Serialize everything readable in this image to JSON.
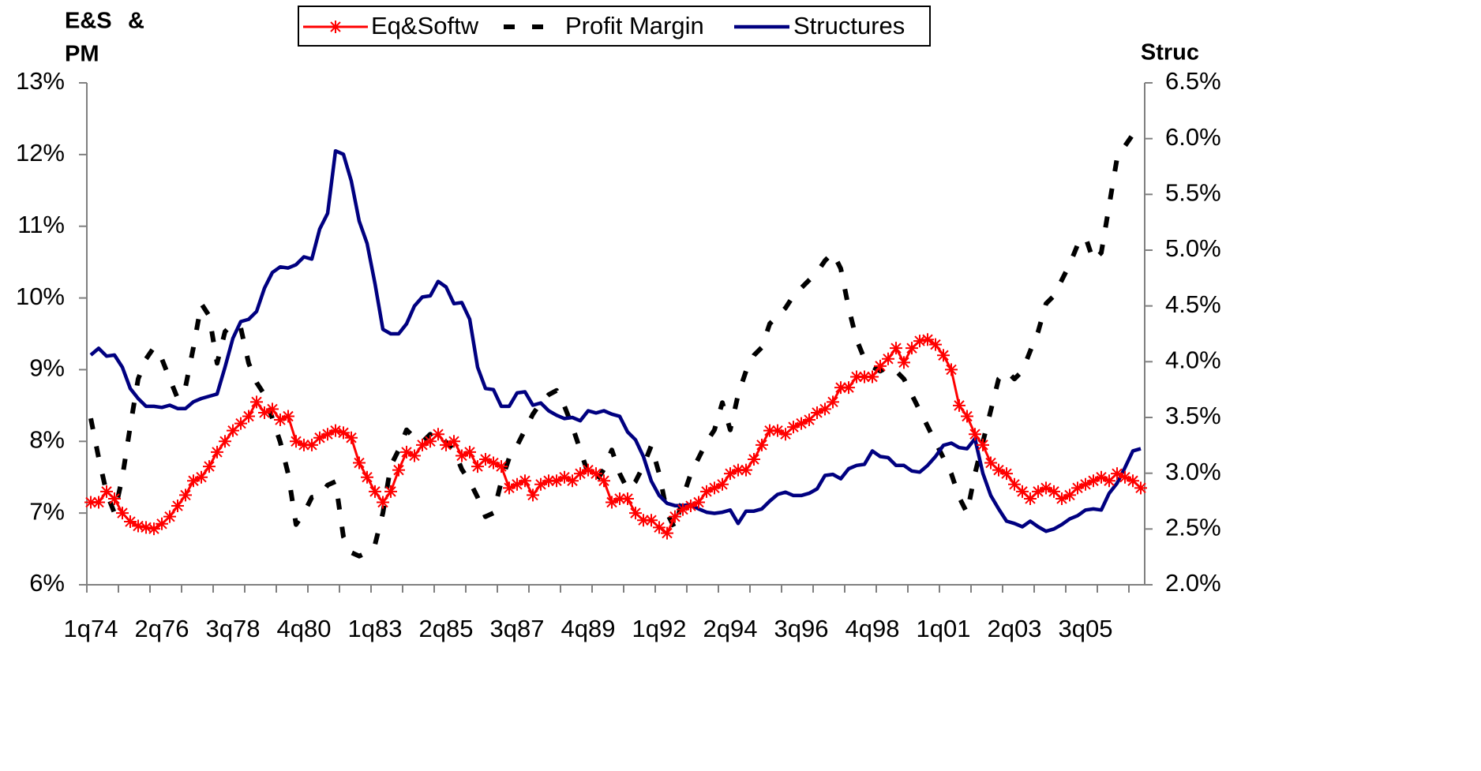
{
  "chart_data": {
    "type": "line",
    "ylabel": [
      {
        "text": "E&S",
        "color": "#ff0000"
      },
      {
        "text": "&",
        "color": "#000080"
      },
      {
        "text": "PM",
        "color": "#000000"
      }
    ],
    "y2label": {
      "text": "Struc",
      "color": "#000080"
    },
    "categories": [
      "1q74",
      null,
      null,
      null,
      null,
      null,
      null,
      null,
      null,
      "2q76",
      null,
      null,
      null,
      null,
      null,
      null,
      null,
      null,
      "3q78",
      null,
      null,
      null,
      null,
      null,
      null,
      null,
      null,
      "4q80",
      null,
      null,
      null,
      null,
      null,
      null,
      null,
      null,
      "1q83",
      null,
      null,
      null,
      null,
      null,
      null,
      null,
      null,
      "2q85",
      null,
      null,
      null,
      null,
      null,
      null,
      null,
      null,
      "3q87",
      null,
      null,
      null,
      null,
      null,
      null,
      null,
      null,
      "4q89",
      null,
      null,
      null,
      null,
      null,
      null,
      null,
      null,
      "1q92",
      null,
      null,
      null,
      null,
      null,
      null,
      null,
      null,
      "2q94",
      null,
      null,
      null,
      null,
      null,
      null,
      null,
      null,
      "3q96",
      null,
      null,
      null,
      null,
      null,
      null,
      null,
      null,
      "4q98",
      null,
      null,
      null,
      null,
      null,
      null,
      null,
      null,
      "1q01",
      null,
      null,
      null,
      null,
      null,
      null,
      null,
      null,
      "2q03",
      null,
      null,
      null,
      null,
      null,
      null,
      null,
      null,
      "3q05",
      null,
      null,
      null,
      null,
      null,
      null,
      null
    ],
    "series": [
      {
        "name": "Eq&Softw",
        "color": "#ff0000",
        "marker": "asterisk",
        "dashed": false,
        "axis": "y",
        "values": [
          7.15,
          7.15,
          7.3,
          7.2,
          7.0,
          6.88,
          6.82,
          6.8,
          6.78,
          6.85,
          6.95,
          7.1,
          7.25,
          7.45,
          7.5,
          7.65,
          7.85,
          8.0,
          8.15,
          8.25,
          8.35,
          8.55,
          8.4,
          8.45,
          8.3,
          8.35,
          8.0,
          7.95,
          7.95,
          8.05,
          8.1,
          8.15,
          8.12,
          8.05,
          7.7,
          7.5,
          7.3,
          7.15,
          7.3,
          7.6,
          7.85,
          7.8,
          7.95,
          8.0,
          8.1,
          7.95,
          8.0,
          7.8,
          7.85,
          7.65,
          7.75,
          7.7,
          7.65,
          7.35,
          7.4,
          7.45,
          7.25,
          7.4,
          7.45,
          7.45,
          7.5,
          7.45,
          7.55,
          7.6,
          7.55,
          7.45,
          7.15,
          7.2,
          7.2,
          7.0,
          6.9,
          6.9,
          6.8,
          6.72,
          6.95,
          7.05,
          7.1,
          7.15,
          7.3,
          7.35,
          7.4,
          7.55,
          7.6,
          7.6,
          7.75,
          7.95,
          8.15,
          8.15,
          8.1,
          8.2,
          8.25,
          8.3,
          8.4,
          8.45,
          8.55,
          8.75,
          8.75,
          8.9,
          8.9,
          8.9,
          9.05,
          9.15,
          9.3,
          9.1,
          9.3,
          9.4,
          9.42,
          9.35,
          9.2,
          9.0,
          8.5,
          8.35,
          8.1,
          7.95,
          7.7,
          7.6,
          7.55,
          7.4,
          7.3,
          7.2,
          7.3,
          7.35,
          7.3,
          7.2,
          7.25,
          7.35,
          7.4,
          7.45,
          7.5,
          7.45,
          7.55,
          7.5,
          7.45,
          7.35
        ]
      },
      {
        "name": "Profit Margin",
        "color": "#000000",
        "marker": "none",
        "dashed": true,
        "axis": "y",
        "values": [
          8.32,
          7.77,
          7.28,
          7.0,
          7.5,
          8.21,
          8.87,
          9.15,
          9.31,
          9.15,
          8.87,
          8.6,
          8.76,
          9.31,
          9.92,
          9.75,
          9.09,
          9.53,
          9.64,
          9.58,
          9.09,
          8.82,
          8.65,
          8.32,
          7.99,
          7.55,
          6.84,
          7.0,
          7.22,
          7.24,
          7.39,
          7.44,
          6.67,
          6.45,
          6.4,
          6.45,
          6.56,
          7.0,
          7.66,
          7.88,
          8.16,
          8.05,
          7.99,
          8.1,
          7.94,
          7.99,
          7.88,
          7.61,
          7.44,
          7.22,
          6.95,
          7.0,
          7.44,
          7.77,
          7.94,
          8.16,
          8.38,
          8.54,
          8.65,
          8.71,
          8.49,
          8.21,
          7.88,
          7.55,
          7.44,
          7.61,
          7.88,
          7.55,
          7.33,
          7.44,
          7.66,
          7.94,
          7.55,
          7.0,
          6.78,
          7.22,
          7.55,
          7.77,
          7.99,
          8.16,
          8.54,
          8.16,
          8.65,
          8.98,
          9.2,
          9.31,
          9.64,
          9.75,
          9.86,
          10.03,
          10.14,
          10.25,
          10.36,
          10.52,
          10.63,
          10.41,
          9.86,
          9.42,
          9.15,
          9.04,
          8.98,
          9.04,
          8.98,
          8.87,
          8.65,
          8.43,
          8.21,
          7.99,
          7.77,
          7.55,
          7.22,
          7.0,
          7.55,
          7.99,
          8.43,
          8.87,
          8.98,
          8.87,
          8.98,
          9.26,
          9.53,
          9.92,
          10.03,
          10.25,
          10.47,
          10.74,
          10.85,
          10.52,
          10.63,
          11.29,
          11.95,
          12.12,
          12.28,
          12.34
        ]
      },
      {
        "name": "Structures",
        "color": "#000080",
        "marker": "none",
        "dashed": false,
        "axis": "y2",
        "values": [
          4.06,
          4.12,
          4.05,
          4.06,
          3.95,
          3.76,
          3.67,
          3.6,
          3.6,
          3.59,
          3.61,
          3.58,
          3.58,
          3.64,
          3.67,
          3.69,
          3.71,
          3.95,
          4.21,
          4.36,
          4.38,
          4.45,
          4.66,
          4.8,
          4.85,
          4.84,
          4.87,
          4.94,
          4.92,
          5.19,
          5.33,
          5.89,
          5.86,
          5.62,
          5.26,
          5.06,
          4.7,
          4.29,
          4.25,
          4.25,
          4.34,
          4.5,
          4.58,
          4.59,
          4.72,
          4.67,
          4.52,
          4.53,
          4.38,
          3.95,
          3.76,
          3.75,
          3.6,
          3.6,
          3.72,
          3.73,
          3.61,
          3.63,
          3.56,
          3.52,
          3.49,
          3.5,
          3.47,
          3.56,
          3.54,
          3.56,
          3.53,
          3.51,
          3.37,
          3.3,
          3.15,
          2.93,
          2.8,
          2.73,
          2.71,
          2.71,
          2.72,
          2.68,
          2.65,
          2.64,
          2.65,
          2.67,
          2.55,
          2.66,
          2.66,
          2.68,
          2.75,
          2.81,
          2.83,
          2.8,
          2.8,
          2.82,
          2.86,
          2.98,
          2.99,
          2.95,
          3.04,
          3.07,
          3.08,
          3.2,
          3.15,
          3.14,
          3.07,
          3.07,
          3.02,
          3.01,
          3.07,
          3.15,
          3.25,
          3.27,
          3.23,
          3.22,
          3.31,
          3.0,
          2.8,
          2.68,
          2.57,
          2.55,
          2.52,
          2.57,
          2.52,
          2.48,
          2.5,
          2.54,
          2.59,
          2.62,
          2.67,
          2.68,
          2.67,
          2.82,
          2.91,
          3.05,
          3.2,
          3.22
        ]
      }
    ],
    "ylim": [
      6,
      13
    ],
    "yticks": [
      {
        "value": 6,
        "label": "6%"
      },
      {
        "value": 7,
        "label": "7%"
      },
      {
        "value": 8,
        "label": "8%"
      },
      {
        "value": 9,
        "label": "9%"
      },
      {
        "value": 10,
        "label": "10%"
      },
      {
        "value": 11,
        "label": "11%"
      },
      {
        "value": 12,
        "label": "12%"
      },
      {
        "value": 13,
        "label": "13%"
      }
    ],
    "y2lim": [
      2,
      6.5
    ],
    "y2ticks": [
      {
        "value": 2,
        "label": "2.0%"
      },
      {
        "value": 2.5,
        "label": "2.5%"
      },
      {
        "value": 3,
        "label": "3.0%"
      },
      {
        "value": 3.5,
        "label": "3.5%"
      },
      {
        "value": 4,
        "label": "4.0%"
      },
      {
        "value": 4.5,
        "label": "4.5%"
      },
      {
        "value": 5,
        "label": "5.0%"
      },
      {
        "value": 5.5,
        "label": "5.5%"
      },
      {
        "value": 6,
        "label": "6.0%"
      },
      {
        "value": 6.5,
        "label": "6.5%"
      }
    ],
    "grid": false,
    "legend": "top"
  }
}
